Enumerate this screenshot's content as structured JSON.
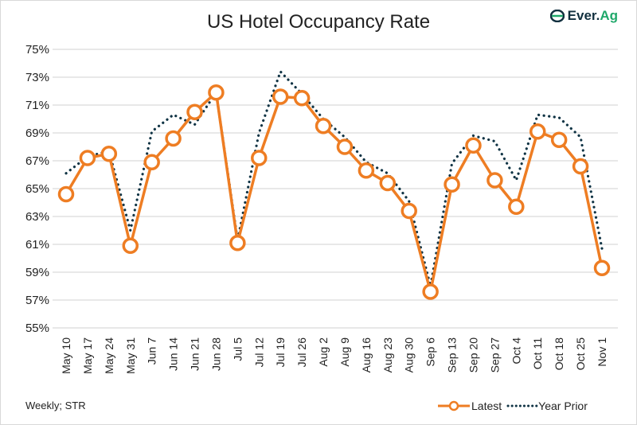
{
  "chart_data": {
    "type": "line",
    "title": "US Hotel Occupancy Rate",
    "xlabel": "",
    "ylabel": "",
    "categories": [
      "May 10",
      "May 17",
      "May 24",
      "May 31",
      "Jun 7",
      "Jun 14",
      "Jun 21",
      "Jun 28",
      "Jul 5",
      "Jul 12",
      "Jul 19",
      "Jul 26",
      "Aug 2",
      "Aug 9",
      "Aug 16",
      "Aug 23",
      "Aug 30",
      "Sep 6",
      "Sep 13",
      "Sep 20",
      "Sep 27",
      "Oct 4",
      "Oct 11",
      "Oct 18",
      "Oct 25",
      "Nov 1"
    ],
    "series": [
      {
        "name": "Latest",
        "color": "#ee7d23",
        "style": "solid-with-hollow-markers",
        "values": [
          64.6,
          67.2,
          67.5,
          60.9,
          66.9,
          68.6,
          70.5,
          71.9,
          61.1,
          67.2,
          71.6,
          71.5,
          69.5,
          68.0,
          66.3,
          65.4,
          63.4,
          57.6,
          65.3,
          68.1,
          65.6,
          63.7,
          69.1,
          68.5,
          66.6,
          59.3
        ]
      },
      {
        "name": "Year Prior",
        "color": "#0f3344",
        "style": "dotted",
        "values": [
          66.1,
          67.3,
          67.7,
          62.0,
          69.1,
          70.3,
          69.6,
          71.9,
          61.3,
          69.0,
          73.4,
          71.8,
          70.0,
          68.7,
          66.9,
          66.1,
          64.1,
          58.0,
          66.8,
          68.8,
          68.4,
          65.6,
          70.3,
          70.1,
          68.7,
          60.7
        ]
      }
    ],
    "ylim": [
      55,
      75
    ],
    "yticks": [
      "55%",
      "57%",
      "59%",
      "61%",
      "63%",
      "65%",
      "67%",
      "69%",
      "71%",
      "73%",
      "75%"
    ],
    "grid": true,
    "legend": "bottom-right"
  },
  "source_note": "Weekly; STR",
  "logo": {
    "text_main": "Ever.",
    "text_accent": "Ag"
  }
}
